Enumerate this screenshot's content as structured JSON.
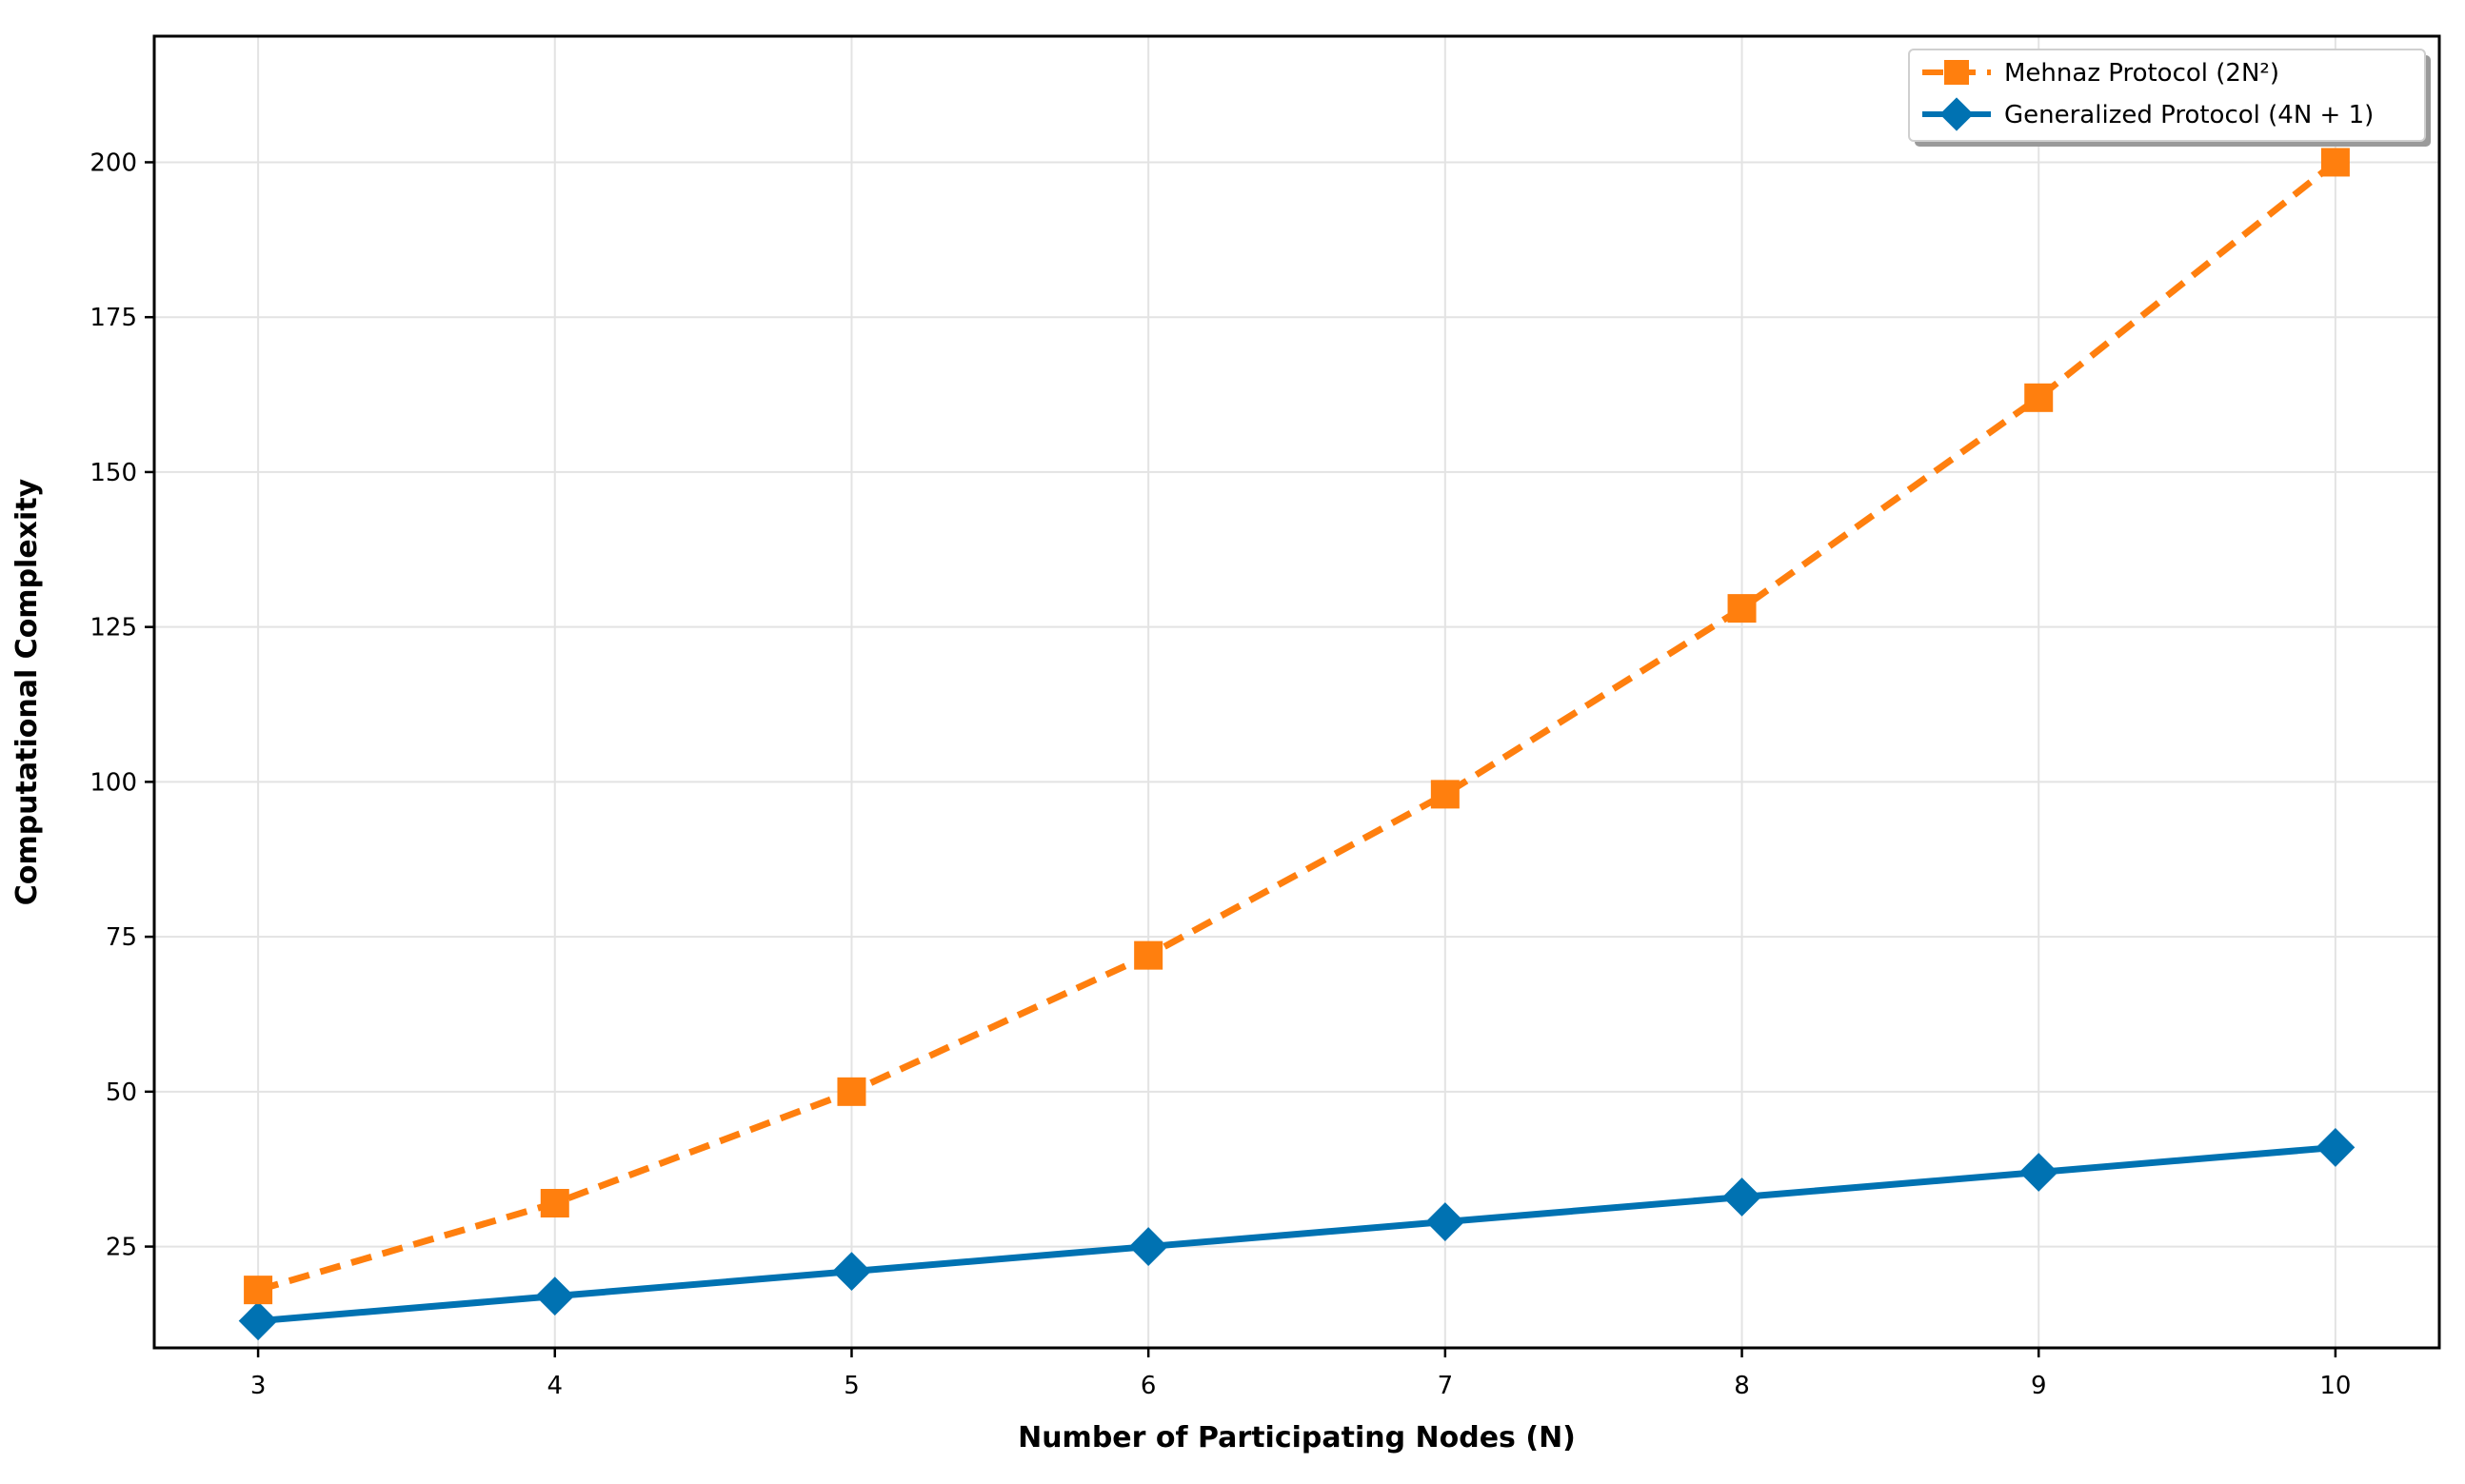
{
  "chart_data": {
    "type": "line",
    "title": "",
    "xlabel": "Number of Participating Nodes (N)",
    "ylabel": "Computational Complexity",
    "x": [
      3,
      4,
      5,
      6,
      7,
      8,
      9,
      10
    ],
    "xlim": [
      2.65,
      10.35
    ],
    "ylim": [
      8.65,
      220.35
    ],
    "yticks": [
      25,
      50,
      75,
      100,
      125,
      150,
      175,
      200
    ],
    "grid": true,
    "legend_position": "top-right",
    "series": [
      {
        "name": "Mehnaz Protocol (2N²)",
        "values": [
          18,
          32,
          50,
          72,
          98,
          128,
          162,
          200
        ],
        "color": "#ff7f0e",
        "line_style": "dashed",
        "marker": "square"
      },
      {
        "name": "Generalized Protocol (4N + 1)",
        "values": [
          13,
          17,
          21,
          25,
          29,
          33,
          37,
          41
        ],
        "color": "#0072b2",
        "line_style": "solid",
        "marker": "diamond"
      }
    ]
  }
}
